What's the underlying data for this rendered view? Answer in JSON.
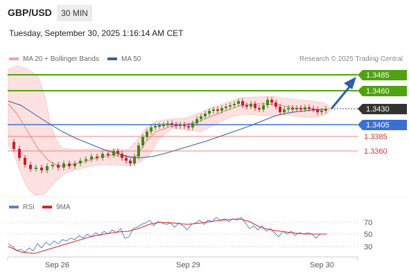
{
  "header": {
    "symbol": "GBP/USD",
    "timeframe": "30 MIN",
    "datetime": "Tuesday, September 30, 2025 1:16:14 AM CET"
  },
  "legend": {
    "ma20_label": "MA 20 + Bollinger Bands",
    "ma50_label": "MA 50",
    "credit": "Research © 2025 Trading Central"
  },
  "levels": [
    {
      "value": "1.3485",
      "type": "resistance",
      "color": "#4ea30e"
    },
    {
      "value": "1.3460",
      "type": "resistance",
      "color": "#4ea30e"
    },
    {
      "value": "1.3430",
      "type": "last",
      "color": "#333333"
    },
    {
      "value": "1.3405",
      "type": "pivot",
      "color": "#3b6fd4"
    },
    {
      "value": "1.3385",
      "type": "support",
      "color": "#e85a5a"
    },
    {
      "value": "1.3360",
      "type": "support",
      "color": "#e85a5a"
    }
  ],
  "rsi_panel": {
    "rsi_label": "RSI",
    "ma_label": "9MA",
    "levels": [
      "70",
      "50",
      "30"
    ]
  },
  "x_axis": {
    "labels": [
      "Sep 26",
      "Sep 29",
      "Sep 30"
    ]
  },
  "colors": {
    "up_candle": "#3f8a14",
    "down_candle": "#c8202a",
    "bollinger_fill": "#fde0e0",
    "ma20": "#f08080",
    "ma50": "#3a5a9c",
    "rsi": "#5b7fd6",
    "rsi_ma": "#e02020",
    "arrow": "#2f5fa8"
  }
}
